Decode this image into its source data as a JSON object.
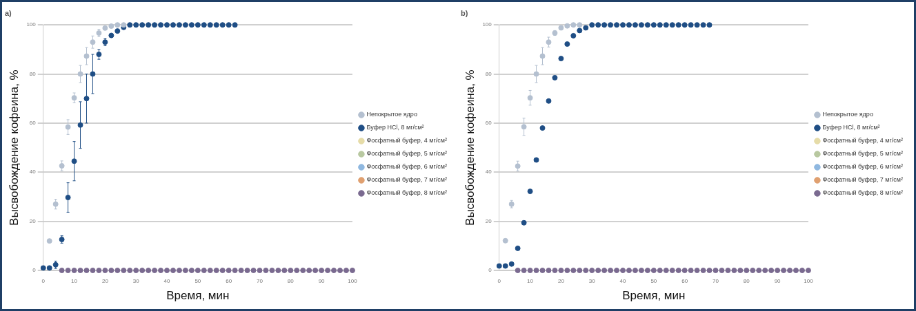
{
  "chart_data": [
    {
      "type": "scatter",
      "title": "a)",
      "xlabel": "Время, мин",
      "ylabel": "Высвобождение кофеина, %",
      "xlim": [
        0,
        100
      ],
      "xticks": [
        0,
        10,
        20,
        30,
        40,
        50,
        60,
        70,
        80,
        90,
        100
      ],
      "ylim": [
        0,
        100
      ],
      "yticks": [
        0,
        20,
        40,
        60,
        80,
        100
      ],
      "grid": "y",
      "legend": "right",
      "marker": "circle",
      "series": [
        {
          "name": "Непокрытое ядро",
          "color": "#b4c0d0",
          "x": [
            2,
            4,
            6,
            8,
            10,
            12,
            14,
            16,
            18,
            20,
            22,
            24,
            26
          ],
          "values": [
            12,
            27,
            42.6,
            58.4,
            70.3,
            80,
            87.3,
            93,
            96.7,
            98.7,
            99.5,
            100,
            100
          ],
          "errors": [
            null,
            2,
            2,
            3,
            2,
            3.5,
            3.5,
            2.5,
            1.5,
            null,
            null,
            null,
            null
          ]
        },
        {
          "name": "Буфер HCl, 8 мг/см²",
          "color": "#1f4e85",
          "x": [
            0,
            2,
            4,
            6,
            8,
            10,
            12,
            14,
            16,
            18,
            20,
            22,
            24,
            26,
            28,
            30,
            32,
            34,
            36,
            38,
            40,
            42,
            44,
            46,
            48,
            50,
            52,
            54,
            56,
            58,
            60,
            62
          ],
          "values": [
            1,
            1,
            2.3,
            12.6,
            29.7,
            44.5,
            59.2,
            70,
            80,
            88,
            93,
            95.7,
            97.5,
            99,
            100,
            100,
            100,
            100,
            100,
            100,
            100,
            100,
            100,
            100,
            100,
            100,
            100,
            100,
            100,
            100,
            100,
            100
          ],
          "errors": [
            null,
            null,
            1.5,
            1.5,
            6,
            8,
            9.5,
            10,
            8,
            2,
            1.5,
            null,
            null,
            null,
            null,
            null,
            null,
            null,
            null,
            null,
            null,
            null,
            null,
            null,
            null,
            null,
            null,
            null,
            null,
            null,
            null,
            null
          ]
        },
        {
          "name": "Фосфатный буфер, 4 мг/см²",
          "color": "#e6dca8"
        },
        {
          "name": "Фосфатный буфер, 5 мг/см²",
          "color": "#b8c8a0"
        },
        {
          "name": "Фосфатный буфер, 6 мг/см²",
          "color": "#8fb8e0"
        },
        {
          "name": "Фосфатный буфер, 7 мг/см²",
          "color": "#e0a070"
        },
        {
          "name": "Фосфатный буфер, 8 мг/см²",
          "color": "#7a6a90",
          "x": [
            6,
            8,
            10,
            12,
            14,
            16,
            18,
            20,
            22,
            24,
            26,
            28,
            30,
            32,
            34,
            36,
            38,
            40,
            42,
            44,
            46,
            48,
            50,
            52,
            54,
            56,
            58,
            60,
            62,
            64,
            66,
            68,
            70,
            72,
            74,
            76,
            78,
            80,
            82,
            84,
            86,
            88,
            90,
            92,
            94,
            96,
            98,
            100
          ],
          "values": [
            0,
            0,
            0,
            0,
            0,
            0,
            0,
            0,
            0,
            0,
            0,
            0,
            0,
            0,
            0,
            0,
            0,
            0,
            0,
            0,
            0,
            0,
            0,
            0,
            0,
            0,
            0,
            0,
            0,
            0,
            0,
            0,
            0,
            0,
            0,
            0,
            0,
            0,
            0,
            0,
            0,
            0,
            0,
            0,
            0,
            0,
            0,
            0
          ]
        }
      ]
    },
    {
      "type": "scatter",
      "title": "b)",
      "xlabel": "Время, мин",
      "ylabel": "Высвобождение кофеина, %",
      "xlim": [
        0,
        100
      ],
      "xticks": [
        0,
        10,
        20,
        30,
        40,
        50,
        60,
        70,
        80,
        90,
        100
      ],
      "ylim": [
        0,
        100
      ],
      "yticks": [
        0,
        20,
        40,
        60,
        80,
        100
      ],
      "grid": "y",
      "legend": "right",
      "marker": "circle",
      "series": [
        {
          "name": "Непокрытое ядро",
          "color": "#b4c0d0",
          "x": [
            2,
            4,
            6,
            8,
            10,
            12,
            14,
            16,
            18,
            20,
            22,
            24,
            26
          ],
          "values": [
            12.1,
            27,
            42.5,
            58.5,
            70.3,
            80,
            87.3,
            93,
            96.7,
            98.8,
            99.6,
            100,
            100
          ],
          "errors": [
            null,
            1.5,
            2,
            3.5,
            3,
            3.5,
            3.5,
            2,
            1,
            null,
            null,
            null,
            null
          ]
        },
        {
          "name": "Буфер HCl, 8 мг/см²",
          "color": "#1f4e85",
          "x": [
            0,
            2,
            4,
            6,
            8,
            10,
            12,
            14,
            16,
            18,
            20,
            22,
            24,
            26,
            28,
            30,
            32,
            34,
            36,
            38,
            40,
            42,
            44,
            46,
            48,
            50,
            52,
            54,
            56,
            58,
            60,
            62,
            64,
            66,
            68
          ],
          "values": [
            1.8,
            1.8,
            2.6,
            9,
            19.4,
            32.2,
            45,
            58,
            69,
            78.5,
            86.3,
            92.2,
            95.6,
            97.7,
            98.8,
            100,
            100,
            100,
            100,
            100,
            100,
            100,
            100,
            100,
            100,
            100,
            100,
            100,
            100,
            100,
            100,
            100,
            100,
            100,
            100
          ]
        },
        {
          "name": "Фосфатный буфер, 4 мг/см²",
          "color": "#e6dca8"
        },
        {
          "name": "Фосфатный буфер, 5 мг/см²",
          "color": "#b8c8a0"
        },
        {
          "name": "Фосфатный буфер, 6 мг/см²",
          "color": "#8fb8e0"
        },
        {
          "name": "Фосфатный буфер, 7 мг/см²",
          "color": "#e0a070"
        },
        {
          "name": "Фосфатный буфер, 8 мг/см²",
          "color": "#7a6a90",
          "x": [
            6,
            8,
            10,
            12,
            14,
            16,
            18,
            20,
            22,
            24,
            26,
            28,
            30,
            32,
            34,
            36,
            38,
            40,
            42,
            44,
            46,
            48,
            50,
            52,
            54,
            56,
            58,
            60,
            62,
            64,
            66,
            68,
            70,
            72,
            74,
            76,
            78,
            80,
            82,
            84,
            86,
            88,
            90,
            92,
            94,
            96,
            98,
            100
          ],
          "values": [
            0,
            0,
            0,
            0,
            0,
            0,
            0,
            0,
            0,
            0,
            0,
            0,
            0,
            0,
            0,
            0,
            0,
            0,
            0,
            0,
            0,
            0,
            0,
            0,
            0,
            0,
            0,
            0,
            0,
            0,
            0,
            0,
            0,
            0,
            0,
            0,
            0,
            0,
            0,
            0,
            0,
            0,
            0,
            0,
            0,
            0,
            0,
            0
          ]
        }
      ]
    }
  ]
}
